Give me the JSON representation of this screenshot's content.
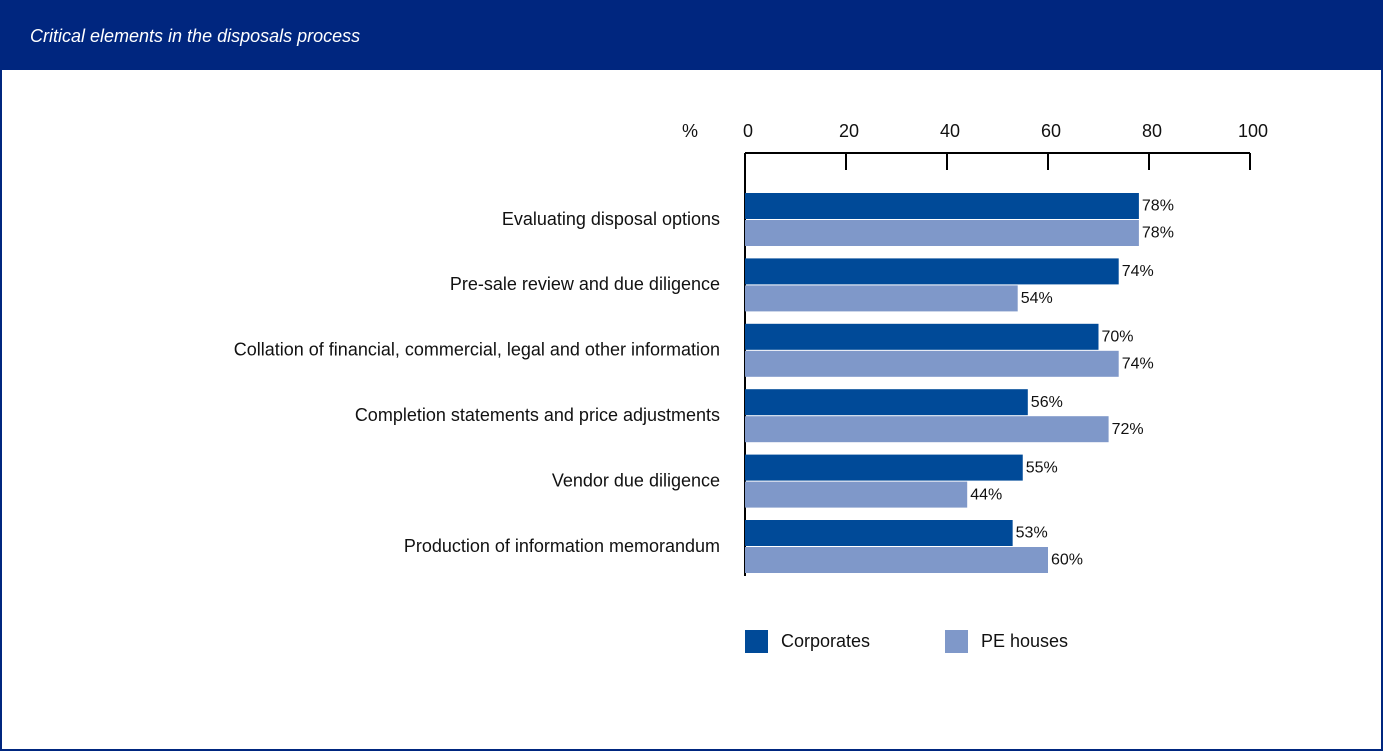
{
  "chart_data": {
    "type": "hbar",
    "title": "Critical elements in the disposals process",
    "xlabel": "%",
    "categories": [
      "Evaluating disposal options",
      "Pre-sale review and due diligence",
      "Collation of financial, commercial, legal and other information",
      "Completion statements and price adjustments",
      "Vendor due diligence",
      "Production of information memorandum"
    ],
    "series": [
      {
        "name": "Corporates",
        "color": "#004a98",
        "values": [
          78,
          74,
          70,
          56,
          55,
          53
        ],
        "value_labels": [
          "78%",
          "74%",
          "70%",
          "56%",
          "55%",
          "53%"
        ]
      },
      {
        "name": "PE houses",
        "color": "#7f98c9",
        "values": [
          78,
          54,
          74,
          72,
          44,
          60
        ],
        "value_labels": [
          "78%",
          "54%",
          "74%",
          "72%",
          "44%",
          "60%"
        ]
      }
    ],
    "xlim": [
      0,
      100
    ],
    "xticks": [
      0,
      20,
      40,
      60,
      80,
      100
    ],
    "legend": "bottom"
  }
}
